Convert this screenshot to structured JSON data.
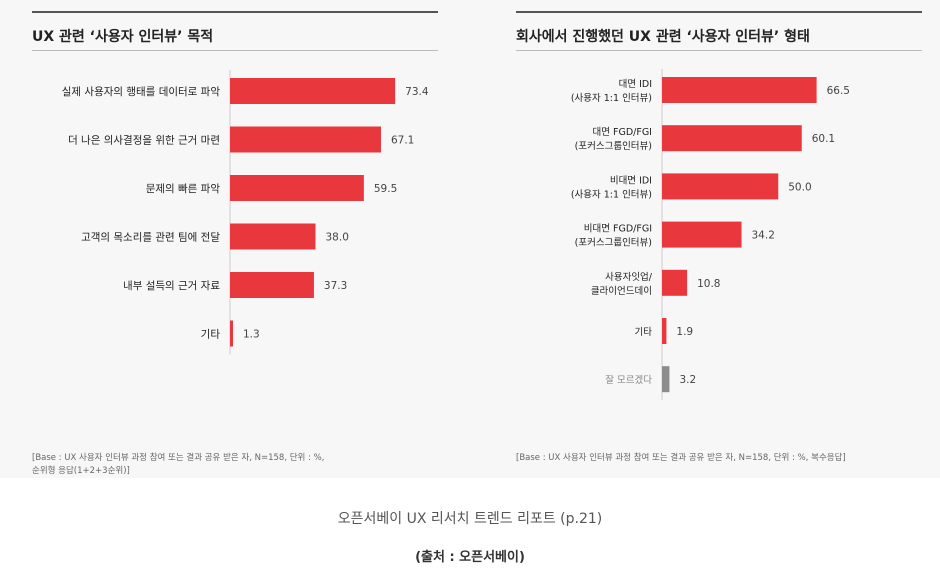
{
  "chart_data": [
    {
      "type": "bar",
      "orientation": "horizontal",
      "title": "UX 관련 ‘사용자 인터뷰’ 목적",
      "categories": [
        "실제 사용자의 행태를 데이터로 파악",
        "더 나은 의사결정을 위한 근거 마련",
        "문제의 빠른 파악",
        "고객의 목소리를 관련 팀에 전달",
        "내부 설득의 근거 자료",
        "기타"
      ],
      "values": [
        73.4,
        67.1,
        59.5,
        38.0,
        37.3,
        1.3
      ],
      "value_labels": [
        "73.4",
        "67.1",
        "59.5",
        "38.0",
        "37.3",
        "1.3"
      ],
      "note": "[Base : UX 사용자 인터뷰 과정 참여 또는 결과 공유 받은 자, N=158, 단위 : %,\n순위형 응답(1+2+3순위)]",
      "grid": false,
      "legend": "none"
    },
    {
      "type": "bar",
      "orientation": "horizontal",
      "title": "회사에서 진행했던 UX 관련 ‘사용자 인터뷰’ 형태",
      "categories": [
        "대면 IDI\n(사용자 1:1 인터뷰)",
        "대면 FGD/FGI\n(포커스그룹인터뷰)",
        "비대면 IDI\n(사용자 1:1 인터뷰)",
        "비대면 FGD/FGI\n(포커스그룹인터뷰)",
        "사용자잇업/\n클라이언드데이",
        "기타",
        "잘 모르겠다"
      ],
      "values": [
        66.5,
        60.1,
        50.0,
        34.2,
        10.8,
        1.9,
        3.2
      ],
      "value_labels": [
        "66.5",
        "60.1",
        "50.0",
        "34.2",
        "10.8",
        "1.9",
        "3.2"
      ],
      "highlight_last": true,
      "note": "[Base : UX 사용자 인터뷰 과정 참여 또는 결과 공유 받은 자, N=158, 단위 : %, 복수응답]",
      "grid": false,
      "legend": "none"
    }
  ],
  "caption": "오픈서베이 UX 리서치 트렌드 리포트 (p.21)",
  "source": "(출처 : 오픈서베이)",
  "colors": {
    "bar": "#e8383d",
    "bar_muted": "#8c8c8c",
    "axis": "#cccccc",
    "text": "#222222",
    "value_text": "#444444"
  }
}
